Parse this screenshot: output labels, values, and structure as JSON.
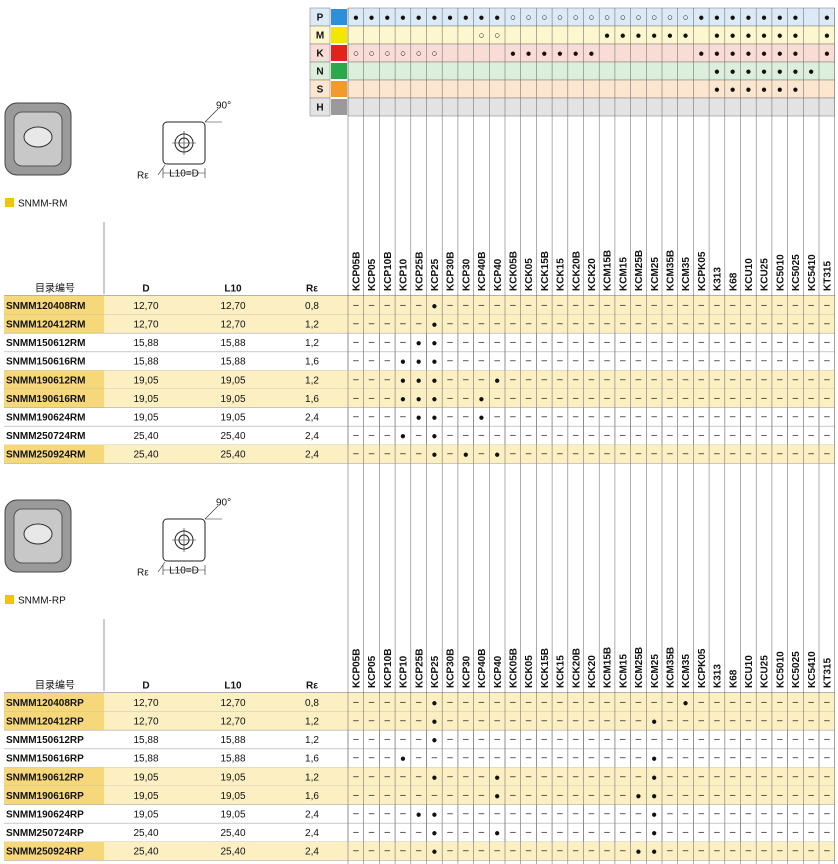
{
  "symbols": {
    "dot": "●",
    "open": "○",
    "dash": "–"
  },
  "grades": [
    "KCP05B",
    "KCP05",
    "KCP10B",
    "KCP10",
    "KCP25B",
    "KCP25",
    "KCP30B",
    "KCP30",
    "KCP40B",
    "KCP40",
    "KCK05B",
    "KCK05",
    "KCK15B",
    "KCK15",
    "KCK20B",
    "KCK20",
    "KCM15B",
    "KCM15",
    "KCM25B",
    "KCM25",
    "KCM35B",
    "KCM35",
    "KCPK05",
    "K313",
    "K68",
    "KCU10",
    "KCU25",
    "KC5010",
    "KC5025",
    "KC5410",
    "KT315"
  ],
  "matrix": {
    "rows": [
      {
        "label": "P",
        "color": "#2b8fd9",
        "bg": "#dce9f7",
        "filled": [
          0,
          1,
          2,
          3,
          4,
          5,
          6,
          7,
          8,
          9,
          22,
          23,
          24,
          25,
          26,
          27,
          28,
          30
        ],
        "open": [
          10,
          11,
          12,
          13,
          14,
          15,
          16,
          17,
          18,
          19,
          20,
          21
        ]
      },
      {
        "label": "M",
        "color": "#f5e600",
        "bg": "#fdf7cf",
        "filled": [
          16,
          17,
          18,
          19,
          20,
          21,
          23,
          24,
          25,
          26,
          27,
          28,
          30
        ],
        "open": [
          8,
          9
        ]
      },
      {
        "label": "K",
        "color": "#e3231b",
        "bg": "#f9dcd6",
        "filled": [
          10,
          11,
          12,
          13,
          14,
          15,
          22,
          23,
          24,
          25,
          26,
          27,
          28,
          30
        ],
        "open": [
          0,
          1,
          2,
          3,
          4,
          5
        ]
      },
      {
        "label": "N",
        "color": "#2aa84a",
        "bg": "#dcefdc",
        "filled": [
          23,
          24,
          25,
          26,
          27,
          28,
          29
        ],
        "open": []
      },
      {
        "label": "S",
        "color": "#f39a2b",
        "bg": "#fde6cf",
        "filled": [
          23,
          24,
          25,
          26,
          27,
          28
        ],
        "open": []
      },
      {
        "label": "H",
        "color": "#9a9a9a",
        "bg": "#e3e3e3",
        "filled": [],
        "open": []
      }
    ]
  },
  "sections": [
    {
      "title": "SNMM-RM",
      "diagram": {
        "angle": "90°",
        "radius": "Rε",
        "length": "L10=D"
      },
      "headers": [
        "目录编号",
        "D",
        "L10",
        "Rε"
      ],
      "rows": [
        {
          "cells": [
            "SNMM120408RM",
            "12,70",
            "12,70",
            "0,8"
          ],
          "dots": [
            5
          ],
          "highlight": true
        },
        {
          "cells": [
            "SNMM120412RM",
            "12,70",
            "12,70",
            "1,2"
          ],
          "dots": [
            5
          ],
          "highlight": true
        },
        {
          "cells": [
            "SNMM150612RM",
            "15,88",
            "15,88",
            "1,2"
          ],
          "dots": [
            4,
            5
          ],
          "highlight": false
        },
        {
          "cells": [
            "SNMM150616RM",
            "15,88",
            "15,88",
            "1,6"
          ],
          "dots": [
            3,
            4,
            5
          ],
          "highlight": false
        },
        {
          "cells": [
            "SNMM190612RM",
            "19,05",
            "19,05",
            "1,2"
          ],
          "dots": [
            3,
            4,
            5,
            9
          ],
          "highlight": true
        },
        {
          "cells": [
            "SNMM190616RM",
            "19,05",
            "19,05",
            "1,6"
          ],
          "dots": [
            3,
            4,
            5,
            8
          ],
          "highlight": true
        },
        {
          "cells": [
            "SNMM190624RM",
            "19,05",
            "19,05",
            "2,4"
          ],
          "dots": [
            4,
            5,
            8
          ],
          "highlight": false
        },
        {
          "cells": [
            "SNMM250724RM",
            "25,40",
            "25,40",
            "2,4"
          ],
          "dots": [
            3,
            5
          ],
          "highlight": false
        },
        {
          "cells": [
            "SNMM250924RM",
            "25,40",
            "25,40",
            "2,4"
          ],
          "dots": [
            5,
            7,
            9
          ],
          "highlight": true
        }
      ]
    },
    {
      "title": "SNMM-RP",
      "diagram": {
        "angle": "90°",
        "radius": "Rε",
        "length": "L10=D"
      },
      "headers": [
        "目录编号",
        "D",
        "L10",
        "Rε"
      ],
      "rows": [
        {
          "cells": [
            "SNMM120408RP",
            "12,70",
            "12,70",
            "0,8"
          ],
          "dots": [
            5,
            21
          ],
          "highlight": true
        },
        {
          "cells": [
            "SNMM120412RP",
            "12,70",
            "12,70",
            "1,2"
          ],
          "dots": [
            5,
            19
          ],
          "highlight": true
        },
        {
          "cells": [
            "SNMM150612RP",
            "15,88",
            "15,88",
            "1,2"
          ],
          "dots": [
            5
          ],
          "highlight": false
        },
        {
          "cells": [
            "SNMM150616RP",
            "15,88",
            "15,88",
            "1,6"
          ],
          "dots": [
            3,
            19
          ],
          "highlight": false
        },
        {
          "cells": [
            "SNMM190612RP",
            "19,05",
            "19,05",
            "1,2"
          ],
          "dots": [
            5,
            9,
            19
          ],
          "highlight": true
        },
        {
          "cells": [
            "SNMM190616RP",
            "19,05",
            "19,05",
            "1,6"
          ],
          "dots": [
            9,
            18,
            19
          ],
          "highlight": true
        },
        {
          "cells": [
            "SNMM190624RP",
            "19,05",
            "19,05",
            "2,4"
          ],
          "dots": [
            4,
            5,
            19
          ],
          "highlight": false
        },
        {
          "cells": [
            "SNMM250724RP",
            "25,40",
            "25,40",
            "2,4"
          ],
          "dots": [
            5,
            9,
            19
          ],
          "highlight": false
        },
        {
          "cells": [
            "SNMM250924RP",
            "25,40",
            "25,40",
            "2,4"
          ],
          "dots": [
            5,
            18,
            19
          ],
          "highlight": true
        }
      ]
    }
  ]
}
